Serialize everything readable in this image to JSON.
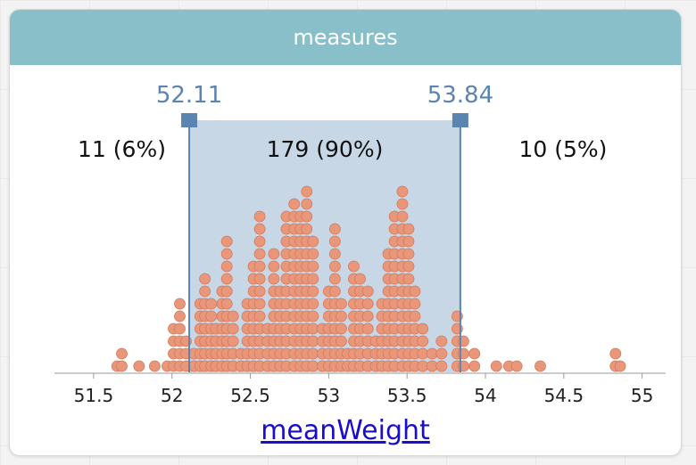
{
  "card": {
    "title": "measures"
  },
  "colors": {
    "header": "#88bfc9",
    "dot_fill": "#e8977a",
    "dot_stroke": "#d7785a",
    "band_fill": "#c8d7e6",
    "bracket": "#5b84b1",
    "axis": "#cccccc",
    "link": "#1a0dcc"
  },
  "chart_data": {
    "type": "scatter",
    "subtype": "dot-plot",
    "xlabel": "meanWeight",
    "x_range": [
      51.25,
      55.15
    ],
    "x_ticks": [
      "51.5",
      "52",
      "52.5",
      "53",
      "53.5",
      "54",
      "54.5",
      "55"
    ],
    "bracket": {
      "low": 52.11,
      "high": 53.84,
      "low_label": "52.11",
      "high_label": "53.84"
    },
    "regions": [
      {
        "label": "11 (6%)",
        "count": 11,
        "percent": 6
      },
      {
        "label": "179 (90%)",
        "count": 179,
        "percent": 90
      },
      {
        "label": "10 (5%)",
        "count": 10,
        "percent": 5
      }
    ],
    "bins": [
      {
        "x": 51.65,
        "n": 1
      },
      {
        "x": 51.68,
        "n": 2
      },
      {
        "x": 51.79,
        "n": 1
      },
      {
        "x": 51.89,
        "n": 1
      },
      {
        "x": 51.97,
        "n": 1
      },
      {
        "x": 52.01,
        "n": 4
      },
      {
        "x": 52.05,
        "n": 6
      },
      {
        "x": 52.09,
        "n": 3
      },
      {
        "x": 52.14,
        "n": 2
      },
      {
        "x": 52.18,
        "n": 6
      },
      {
        "x": 52.21,
        "n": 8
      },
      {
        "x": 52.25,
        "n": 6
      },
      {
        "x": 52.28,
        "n": 4
      },
      {
        "x": 52.32,
        "n": 7
      },
      {
        "x": 52.35,
        "n": 11
      },
      {
        "x": 52.39,
        "n": 5
      },
      {
        "x": 52.44,
        "n": 2
      },
      {
        "x": 52.48,
        "n": 6
      },
      {
        "x": 52.52,
        "n": 9
      },
      {
        "x": 52.56,
        "n": 13
      },
      {
        "x": 52.61,
        "n": 4
      },
      {
        "x": 52.65,
        "n": 10
      },
      {
        "x": 52.69,
        "n": 7
      },
      {
        "x": 52.73,
        "n": 13
      },
      {
        "x": 52.78,
        "n": 14
      },
      {
        "x": 52.82,
        "n": 13
      },
      {
        "x": 52.86,
        "n": 15
      },
      {
        "x": 52.9,
        "n": 11
      },
      {
        "x": 52.96,
        "n": 4
      },
      {
        "x": 53.0,
        "n": 7
      },
      {
        "x": 53.04,
        "n": 12
      },
      {
        "x": 53.08,
        "n": 6
      },
      {
        "x": 53.12,
        "n": 2
      },
      {
        "x": 53.16,
        "n": 9
      },
      {
        "x": 53.2,
        "n": 8
      },
      {
        "x": 53.25,
        "n": 7
      },
      {
        "x": 53.3,
        "n": 3
      },
      {
        "x": 53.34,
        "n": 6
      },
      {
        "x": 53.38,
        "n": 10
      },
      {
        "x": 53.42,
        "n": 13
      },
      {
        "x": 53.47,
        "n": 15
      },
      {
        "x": 53.51,
        "n": 12
      },
      {
        "x": 53.55,
        "n": 7
      },
      {
        "x": 53.6,
        "n": 4
      },
      {
        "x": 53.66,
        "n": 2
      },
      {
        "x": 53.72,
        "n": 3
      },
      {
        "x": 53.82,
        "n": 5
      },
      {
        "x": 53.86,
        "n": 3
      },
      {
        "x": 53.93,
        "n": 2
      },
      {
        "x": 54.07,
        "n": 1
      },
      {
        "x": 54.15,
        "n": 1
      },
      {
        "x": 54.2,
        "n": 1
      },
      {
        "x": 54.35,
        "n": 1
      },
      {
        "x": 54.83,
        "n": 2
      },
      {
        "x": 54.86,
        "n": 1
      }
    ]
  }
}
